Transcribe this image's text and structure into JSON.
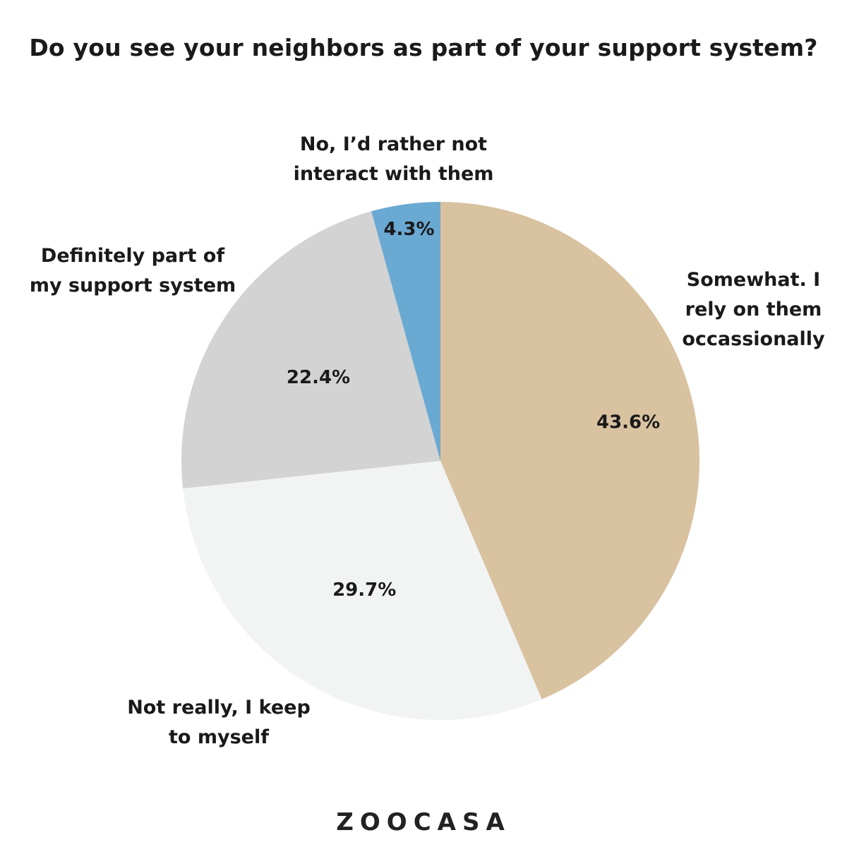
{
  "chart_data": {
    "type": "pie",
    "title": "Do you see your neighbors as part of your support system?",
    "categories": [
      "Somewhat. I rely on them occassionally",
      "Not really, I keep to myself",
      "Definitely part of my support system",
      "No, I’d rather not interact with them"
    ],
    "values": [
      43.6,
      29.7,
      22.4,
      4.3
    ],
    "value_labels": [
      "43.6%",
      "29.7%",
      "22.4%",
      "4.3%"
    ],
    "category_labels": [
      "Somewhat. I\nrely on them\noccassionally",
      "Not really, I keep\nto myself",
      "Definitely part of\nmy support system",
      "No, I’d rather not\ninteract with them"
    ],
    "colors": [
      "#d8c2a0",
      "#f2f3f3",
      "#d3d3d3",
      "#6aa9d2"
    ],
    "start_angle": "12 o'clock",
    "direction": "clockwise",
    "legend": "none"
  },
  "logo_text": "ZOOCASA"
}
